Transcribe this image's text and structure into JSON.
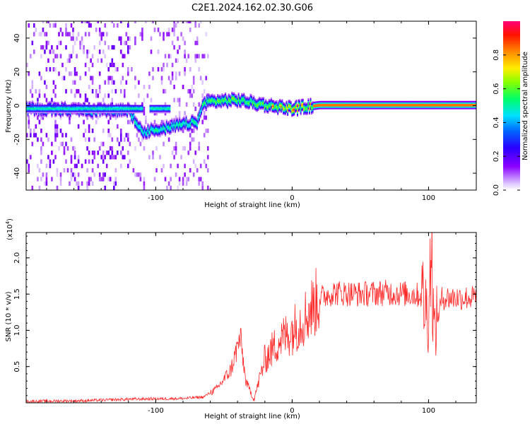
{
  "title": "C2E1.2024.162.02.30.G06",
  "colors": {
    "frame": "#000000",
    "snr_line": "#ff2a2a",
    "background": "#ffffff"
  },
  "chart_data": [
    {
      "type": "heatmap",
      "xlabel": "Height of straight line (km)",
      "ylabel": "Frequency (Hz)",
      "xlim": [
        -195,
        135
      ],
      "ylim": [
        -50,
        50
      ],
      "x_ticks": [
        -100,
        0,
        100
      ],
      "y_ticks": [
        -40,
        -20,
        0,
        20,
        40
      ],
      "colorbar": {
        "label": "Normalized spectral amplitude",
        "range": [
          0.0,
          1.0
        ],
        "ticks": [
          "0.0",
          "0.2",
          "0.4",
          "0.6",
          "0.8"
        ],
        "colormap": [
          "#e6d2ff",
          "#7a00ff",
          "#0000ff",
          "#00ccff",
          "#00ff44",
          "#ccff00",
          "#ff9900",
          "#ff0000",
          "#ff0066"
        ]
      },
      "ridge": {
        "description_points": [
          {
            "x": -195,
            "y": -2
          },
          {
            "x": -150,
            "y": -3
          },
          {
            "x": -120,
            "y": -3
          },
          {
            "x": -110,
            "y": -16
          },
          {
            "x": -90,
            "y": -13
          },
          {
            "x": -70,
            "y": -10
          },
          {
            "x": -65,
            "y": 2
          },
          {
            "x": -40,
            "y": 3
          },
          {
            "x": -20,
            "y": 0
          },
          {
            "x": 0,
            "y": -2
          },
          {
            "x": 20,
            "y": 0
          },
          {
            "x": 135,
            "y": 0
          }
        ]
      }
    },
    {
      "type": "line",
      "xlabel": "Height of straight line (km)",
      "ylabel": "SNR (10 * v/v)",
      "multiplier_label": "(x10",
      "multiplier_exp": "4",
      "multiplier_close": ")",
      "xlim": [
        -195,
        135
      ],
      "ylim": [
        0,
        2.35
      ],
      "x_ticks": [
        -100,
        0,
        100
      ],
      "y_ticks": [
        "0.5",
        "1.0",
        "1.5",
        "2.0"
      ],
      "series": [
        {
          "values_by_height": [
            {
              "x": -195,
              "y": 0.02
            },
            {
              "x": -150,
              "y": 0.03
            },
            {
              "x": -120,
              "y": 0.05
            },
            {
              "x": -80,
              "y": 0.06
            },
            {
              "x": -65,
              "y": 0.08
            },
            {
              "x": -55,
              "y": 0.2
            },
            {
              "x": -45,
              "y": 0.45
            },
            {
              "x": -38,
              "y": 0.9
            },
            {
              "x": -34,
              "y": 0.3
            },
            {
              "x": -28,
              "y": 0.05
            },
            {
              "x": -20,
              "y": 0.6
            },
            {
              "x": -10,
              "y": 0.85
            },
            {
              "x": 0,
              "y": 1.0
            },
            {
              "x": 10,
              "y": 1.2
            },
            {
              "x": 20,
              "y": 1.45
            },
            {
              "x": 30,
              "y": 1.52
            },
            {
              "x": 50,
              "y": 1.5
            },
            {
              "x": 70,
              "y": 1.52
            },
            {
              "x": 85,
              "y": 1.5
            },
            {
              "x": 95,
              "y": 1.48
            },
            {
              "x": 100,
              "y": 1.2
            },
            {
              "x": 102,
              "y": 2.28
            },
            {
              "x": 104,
              "y": 0.95
            },
            {
              "x": 110,
              "y": 1.45
            },
            {
              "x": 135,
              "y": 1.45
            }
          ]
        }
      ]
    }
  ]
}
